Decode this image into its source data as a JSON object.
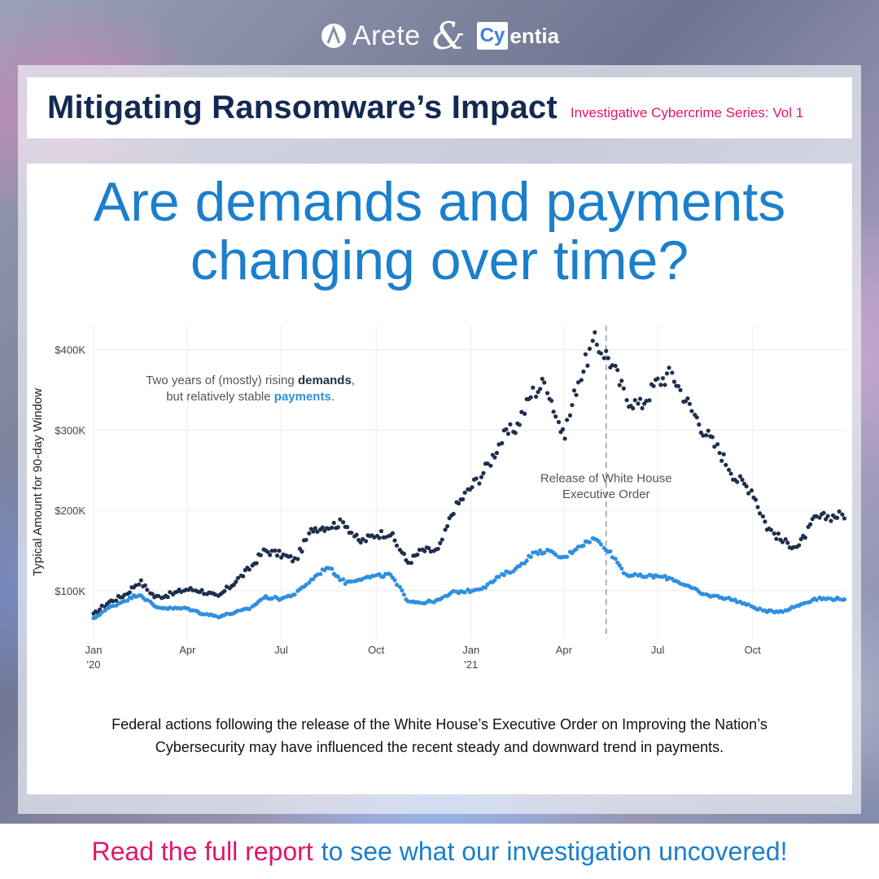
{
  "brand": {
    "logo_left": "Arete",
    "ampersand": "&",
    "logo_right_box": "Cy",
    "logo_right_rest": "entia"
  },
  "header": {
    "title": "Mitigating Ransomware’s Impact",
    "series": "Investigative Cybercrime Series: Vol 1"
  },
  "question": {
    "line1": "Are demands and payments",
    "line2": "changing over time?"
  },
  "chart_data": {
    "type": "scatter",
    "ylabel": "Typical Amount for 90-day Window",
    "yticks": [
      "$100K",
      "$200K",
      "$300K",
      "$400K"
    ],
    "ytick_values": [
      100000,
      200000,
      300000,
      400000
    ],
    "ylim": [
      40000,
      430000
    ],
    "xlim": [
      "2020-01-01",
      "2021-12-31"
    ],
    "xticks": [
      {
        "date": "2020-01-01",
        "label1": "Jan",
        "label2": "'20"
      },
      {
        "date": "2020-04-01",
        "label1": "Apr",
        "label2": ""
      },
      {
        "date": "2020-07-01",
        "label1": "Jul",
        "label2": ""
      },
      {
        "date": "2020-10-01",
        "label1": "Oct",
        "label2": ""
      },
      {
        "date": "2021-01-01",
        "label1": "Jan",
        "label2": "'21"
      },
      {
        "date": "2021-04-01",
        "label1": "Apr",
        "label2": ""
      },
      {
        "date": "2021-07-01",
        "label1": "Jul",
        "label2": ""
      },
      {
        "date": "2021-10-01",
        "label1": "Oct",
        "label2": ""
      }
    ],
    "grid": true,
    "annotation_main": {
      "line1_pre": "Two years of (mostly) rising ",
      "line1_bold": "demands",
      "line1_post": ",",
      "line2_pre": "but relatively stable ",
      "line2_bold": "payments",
      "line2_post": "."
    },
    "event": {
      "date": "2021-05-12",
      "label_line1": "Release of White House",
      "label_line2": "Executive Order"
    },
    "series": [
      {
        "name": "demands",
        "color": "#1e2f4d",
        "points": [
          [
            "2020-01-01",
            70000
          ],
          [
            "2020-01-15",
            85000
          ],
          [
            "2020-02-01",
            95000
          ],
          [
            "2020-02-15",
            112000
          ],
          [
            "2020-03-01",
            92000
          ],
          [
            "2020-03-15",
            95000
          ],
          [
            "2020-04-01",
            102000
          ],
          [
            "2020-04-15",
            100000
          ],
          [
            "2020-05-01",
            92000
          ],
          [
            "2020-05-15",
            108000
          ],
          [
            "2020-06-01",
            128000
          ],
          [
            "2020-06-15",
            150000
          ],
          [
            "2020-07-01",
            145000
          ],
          [
            "2020-07-15",
            138000
          ],
          [
            "2020-08-01",
            178000
          ],
          [
            "2020-08-15",
            180000
          ],
          [
            "2020-09-01",
            185000
          ],
          [
            "2020-09-15",
            160000
          ],
          [
            "2020-10-01",
            170000
          ],
          [
            "2020-10-15",
            172000
          ],
          [
            "2020-11-01",
            135000
          ],
          [
            "2020-11-15",
            150000
          ],
          [
            "2020-12-01",
            150000
          ],
          [
            "2020-12-15",
            200000
          ],
          [
            "2021-01-01",
            228000
          ],
          [
            "2021-01-15",
            250000
          ],
          [
            "2021-02-01",
            290000
          ],
          [
            "2021-02-15",
            305000
          ],
          [
            "2021-03-01",
            345000
          ],
          [
            "2021-03-15",
            360000
          ],
          [
            "2021-04-01",
            290000
          ],
          [
            "2021-04-15",
            360000
          ],
          [
            "2021-05-01",
            410000
          ],
          [
            "2021-05-15",
            390000
          ],
          [
            "2021-06-01",
            340000
          ],
          [
            "2021-06-15",
            330000
          ],
          [
            "2021-07-01",
            360000
          ],
          [
            "2021-07-15",
            370000
          ],
          [
            "2021-08-01",
            330000
          ],
          [
            "2021-08-15",
            300000
          ],
          [
            "2021-09-01",
            270000
          ],
          [
            "2021-09-15",
            240000
          ],
          [
            "2021-10-01",
            225000
          ],
          [
            "2021-10-15",
            180000
          ],
          [
            "2021-11-01",
            160000
          ],
          [
            "2021-11-15",
            155000
          ],
          [
            "2021-12-01",
            190000
          ],
          [
            "2021-12-31",
            195000
          ]
        ]
      },
      {
        "name": "payments",
        "color": "#2f8fe0",
        "points": [
          [
            "2020-01-01",
            65000
          ],
          [
            "2020-01-15",
            78000
          ],
          [
            "2020-02-01",
            88000
          ],
          [
            "2020-02-15",
            96000
          ],
          [
            "2020-03-01",
            80000
          ],
          [
            "2020-03-15",
            78000
          ],
          [
            "2020-04-01",
            78000
          ],
          [
            "2020-04-15",
            72000
          ],
          [
            "2020-05-01",
            68000
          ],
          [
            "2020-05-15",
            72000
          ],
          [
            "2020-06-01",
            78000
          ],
          [
            "2020-06-15",
            92000
          ],
          [
            "2020-07-01",
            90000
          ],
          [
            "2020-07-15",
            96000
          ],
          [
            "2020-08-01",
            115000
          ],
          [
            "2020-08-15",
            130000
          ],
          [
            "2020-09-01",
            110000
          ],
          [
            "2020-09-15",
            115000
          ],
          [
            "2020-10-01",
            118000
          ],
          [
            "2020-10-15",
            120000
          ],
          [
            "2020-11-01",
            88000
          ],
          [
            "2020-11-15",
            85000
          ],
          [
            "2020-12-01",
            88000
          ],
          [
            "2020-12-15",
            98000
          ],
          [
            "2021-01-01",
            100000
          ],
          [
            "2021-01-15",
            105000
          ],
          [
            "2021-02-01",
            120000
          ],
          [
            "2021-02-15",
            128000
          ],
          [
            "2021-03-01",
            145000
          ],
          [
            "2021-03-15",
            150000
          ],
          [
            "2021-04-01",
            140000
          ],
          [
            "2021-04-15",
            155000
          ],
          [
            "2021-05-01",
            165000
          ],
          [
            "2021-05-15",
            150000
          ],
          [
            "2021-06-01",
            120000
          ],
          [
            "2021-06-15",
            118000
          ],
          [
            "2021-07-01",
            118000
          ],
          [
            "2021-07-15",
            115000
          ],
          [
            "2021-08-01",
            105000
          ],
          [
            "2021-08-15",
            95000
          ],
          [
            "2021-09-01",
            92000
          ],
          [
            "2021-09-15",
            88000
          ],
          [
            "2021-10-01",
            80000
          ],
          [
            "2021-10-15",
            74000
          ],
          [
            "2021-11-01",
            75000
          ],
          [
            "2021-11-15",
            82000
          ],
          [
            "2021-12-01",
            90000
          ],
          [
            "2021-12-31",
            90000
          ]
        ]
      }
    ]
  },
  "caption": {
    "line1": "Federal actions following the release of the White House’s Executive Order on Improving the Nation’s",
    "line2": "Cybersecurity may have influenced the recent steady and downward trend in payments."
  },
  "footer": {
    "cta_pink": "Read the full report",
    "cta_blue": "to see what our investigation uncovered!"
  }
}
